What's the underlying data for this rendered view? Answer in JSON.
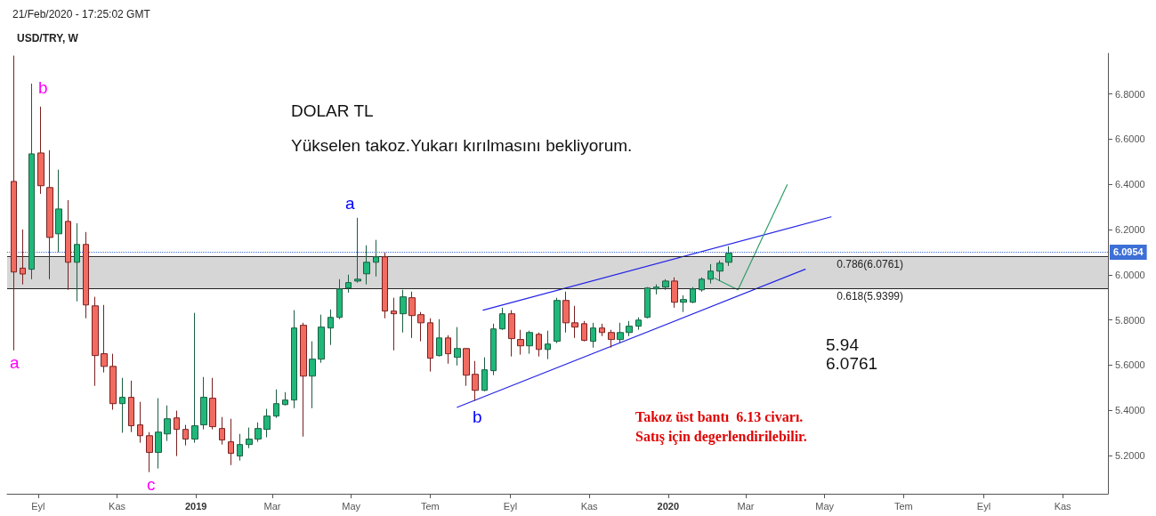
{
  "chart_data": {
    "type": "candlestick",
    "title": "USD/TRY, W",
    "annotations": [
      "21/Feb/2020 - 17:25:02 GMT",
      "DOLAR TL",
      "Yükselen takoz.Yukarı kırılmasını bekliyorum.",
      "5.94",
      "6.0761",
      "Takoz üst bantı  6.13 civarı.",
      "Satış için degerlendirilebilir.",
      "a",
      "b",
      "c",
      "a",
      "b"
    ],
    "xlim": [
      "2018-08-08",
      "2020-12-06"
    ],
    "xticks": [
      {
        "value": "2018-09-01",
        "label": "Eyl"
      },
      {
        "value": "2018-11-01",
        "label": "Kas"
      },
      {
        "value": "2019-01-01",
        "label": "2019"
      },
      {
        "value": "2019-03-01",
        "label": "Mar"
      },
      {
        "value": "2019-05-01",
        "label": "May"
      },
      {
        "value": "2019-07-01",
        "label": "Tem"
      },
      {
        "value": "2019-09-01",
        "label": "Eyl"
      },
      {
        "value": "2019-11-01",
        "label": "Kas"
      },
      {
        "value": "2020-01-01",
        "label": "2020"
      },
      {
        "value": "2020-03-01",
        "label": "Mar"
      },
      {
        "value": "2020-05-01",
        "label": "May"
      },
      {
        "value": "2020-07-01",
        "label": "Tem"
      },
      {
        "value": "2020-09-01",
        "label": "Eyl"
      },
      {
        "value": "2020-11-01",
        "label": "Kas"
      }
    ],
    "ylim": [
      5.03,
      6.98
    ],
    "yticks": [
      {
        "value": 5.2,
        "label": "5.2000"
      },
      {
        "value": 5.4,
        "label": "5.4000"
      },
      {
        "value": 5.6,
        "label": "5.6000"
      },
      {
        "value": 5.8,
        "label": "5.8000"
      },
      {
        "value": 6.0,
        "label": "6.0000"
      },
      {
        "value": 6.2,
        "label": "6.2000"
      },
      {
        "value": 6.4,
        "label": "6.4000"
      },
      {
        "value": 6.6,
        "label": "6.6000"
      },
      {
        "value": 6.8,
        "label": "6.8000"
      }
    ],
    "grid": false,
    "bands": [
      {
        "axis": "y",
        "from": 5.9399,
        "to": 6.0761,
        "color": "#c8c8c8"
      }
    ],
    "ref_lines": [
      {
        "axis": "y",
        "value": 6.0954,
        "label": "6.0954",
        "color": "#3d6fd6",
        "line_style": "dotted"
      },
      {
        "axis": "y",
        "value": 6.0761,
        "label": "0.786(6.0761)",
        "color": "#222222",
        "line_style": "solid"
      },
      {
        "axis": "y",
        "value": 5.9399,
        "label": "0.618(5.9399)",
        "color": "#222222",
        "line_style": "solid"
      }
    ],
    "series": [
      {
        "type": "candlestick",
        "x": [
          "2018-08-13",
          "2018-08-20",
          "2018-08-27",
          "2018-09-03",
          "2018-09-10",
          "2018-09-17",
          "2018-09-24",
          "2018-10-01",
          "2018-10-08",
          "2018-10-15",
          "2018-10-22",
          "2018-10-29",
          "2018-11-05",
          "2018-11-12",
          "2018-11-19",
          "2018-11-26",
          "2018-12-03",
          "2018-12-10",
          "2018-12-17",
          "2018-12-24",
          "2018-12-31",
          "2019-01-07",
          "2019-01-14",
          "2019-01-21",
          "2019-01-28",
          "2019-02-04",
          "2019-02-11",
          "2019-02-18",
          "2019-02-25",
          "2019-03-04",
          "2019-03-11",
          "2019-03-18",
          "2019-03-25",
          "2019-04-01",
          "2019-04-08",
          "2019-04-15",
          "2019-04-22",
          "2019-04-29",
          "2019-05-06",
          "2019-05-13",
          "2019-05-20",
          "2019-05-27",
          "2019-06-03",
          "2019-06-10",
          "2019-06-17",
          "2019-06-24",
          "2019-07-01",
          "2019-07-08",
          "2019-07-15",
          "2019-07-22",
          "2019-07-29",
          "2019-08-05",
          "2019-08-12",
          "2019-08-19",
          "2019-08-26",
          "2019-09-02",
          "2019-09-09",
          "2019-09-16",
          "2019-09-23",
          "2019-09-30",
          "2019-10-07",
          "2019-10-14",
          "2019-10-21",
          "2019-10-28",
          "2019-11-04",
          "2019-11-11",
          "2019-11-18",
          "2019-11-25",
          "2019-12-02",
          "2019-12-09",
          "2019-12-16",
          "2019-12-23",
          "2019-12-30",
          "2020-01-06",
          "2020-01-13",
          "2020-01-20",
          "2020-01-27",
          "2020-02-03",
          "2020-02-10",
          "2020-02-17"
        ],
        "ohlc": [
          [
            6.413,
            6.97,
            5.665,
            6.012
          ],
          [
            6.029,
            6.2,
            5.957,
            6.003
          ],
          [
            6.024,
            6.846,
            5.98,
            6.535
          ],
          [
            6.539,
            6.744,
            6.358,
            6.394
          ],
          [
            6.386,
            6.551,
            5.98,
            6.165
          ],
          [
            6.181,
            6.465,
            6.1,
            6.291
          ],
          [
            6.236,
            6.33,
            5.933,
            6.055
          ],
          [
            6.055,
            6.228,
            5.882,
            6.134
          ],
          [
            6.134,
            6.189,
            5.807,
            5.866
          ],
          [
            5.862,
            5.902,
            5.508,
            5.642
          ],
          [
            5.65,
            5.866,
            5.567,
            5.594
          ],
          [
            5.594,
            5.65,
            5.402,
            5.429
          ],
          [
            5.429,
            5.543,
            5.3,
            5.457
          ],
          [
            5.457,
            5.531,
            5.303,
            5.331
          ],
          [
            5.335,
            5.437,
            5.256,
            5.287
          ],
          [
            5.287,
            5.303,
            5.126,
            5.213
          ],
          [
            5.213,
            5.453,
            5.142,
            5.303
          ],
          [
            5.295,
            5.421,
            5.264,
            5.362
          ],
          [
            5.366,
            5.398,
            5.197,
            5.315
          ],
          [
            5.315,
            5.335,
            5.244,
            5.272
          ],
          [
            5.272,
            5.831,
            5.256,
            5.331
          ],
          [
            5.335,
            5.547,
            5.315,
            5.457
          ],
          [
            5.453,
            5.543,
            5.315,
            5.327
          ],
          [
            5.319,
            5.37,
            5.248,
            5.268
          ],
          [
            5.26,
            5.362,
            5.157,
            5.209
          ],
          [
            5.197,
            5.295,
            5.177,
            5.248
          ],
          [
            5.248,
            5.323,
            5.232,
            5.272
          ],
          [
            5.272,
            5.346,
            5.26,
            5.319
          ],
          [
            5.315,
            5.406,
            5.28,
            5.374
          ],
          [
            5.374,
            5.492,
            5.366,
            5.429
          ],
          [
            5.425,
            5.48,
            5.421,
            5.445
          ],
          [
            5.445,
            5.843,
            5.409,
            5.764
          ],
          [
            5.776,
            5.787,
            5.283,
            5.551
          ],
          [
            5.551,
            5.705,
            5.409,
            5.626
          ],
          [
            5.626,
            5.823,
            5.61,
            5.768
          ],
          [
            5.764,
            5.846,
            5.689,
            5.811
          ],
          [
            5.811,
            5.98,
            5.803,
            5.937
          ],
          [
            5.941,
            6.0,
            5.921,
            5.965
          ],
          [
            5.972,
            6.252,
            5.965,
            5.98
          ],
          [
            6.004,
            6.13,
            5.957,
            6.055
          ],
          [
            6.055,
            6.154,
            5.992,
            6.079
          ],
          [
            6.079,
            6.098,
            5.807,
            5.839
          ],
          [
            5.839,
            5.898,
            5.665,
            5.827
          ],
          [
            5.827,
            5.933,
            5.744,
            5.902
          ],
          [
            5.898,
            5.925,
            5.72,
            5.819
          ],
          [
            5.823,
            5.835,
            5.705,
            5.787
          ],
          [
            5.787,
            5.807,
            5.571,
            5.63
          ],
          [
            5.642,
            5.803,
            5.638,
            5.72
          ],
          [
            5.72,
            5.732,
            5.606,
            5.65
          ],
          [
            5.634,
            5.768,
            5.598,
            5.673
          ],
          [
            5.673,
            5.673,
            5.508,
            5.555
          ],
          [
            5.559,
            5.618,
            5.441,
            5.488
          ],
          [
            5.488,
            5.634,
            5.484,
            5.579
          ],
          [
            5.575,
            5.783,
            5.555,
            5.76
          ],
          [
            5.76,
            5.854,
            5.756,
            5.827
          ],
          [
            5.827,
            5.843,
            5.638,
            5.717
          ],
          [
            5.713,
            5.756,
            5.646,
            5.685
          ],
          [
            5.685,
            5.752,
            5.65,
            5.744
          ],
          [
            5.736,
            5.744,
            5.638,
            5.669
          ],
          [
            5.669,
            5.752,
            5.626,
            5.693
          ],
          [
            5.705,
            5.898,
            5.697,
            5.886
          ],
          [
            5.886,
            5.925,
            5.744,
            5.787
          ],
          [
            5.787,
            5.862,
            5.72,
            5.768
          ],
          [
            5.783,
            5.795,
            5.705,
            5.709
          ],
          [
            5.705,
            5.787,
            5.677,
            5.764
          ],
          [
            5.764,
            5.783,
            5.728,
            5.744
          ],
          [
            5.744,
            5.756,
            5.677,
            5.713
          ],
          [
            5.713,
            5.787,
            5.697,
            5.744
          ],
          [
            5.744,
            5.795,
            5.728,
            5.772
          ],
          [
            5.772,
            5.811,
            5.756,
            5.799
          ],
          [
            5.811,
            5.945,
            5.807,
            5.941
          ],
          [
            5.937,
            5.957,
            5.913,
            5.945
          ],
          [
            5.945,
            5.98,
            5.933,
            5.972
          ],
          [
            5.972,
            5.988,
            5.854,
            5.878
          ],
          [
            5.878,
            5.909,
            5.835,
            5.89
          ],
          [
            5.878,
            5.945,
            5.874,
            5.937
          ],
          [
            5.933,
            5.988,
            5.925,
            5.98
          ],
          [
            5.98,
            6.047,
            5.961,
            6.016
          ],
          [
            6.016,
            6.063,
            5.972,
            6.051
          ],
          [
            6.055,
            6.126,
            6.039,
            6.0954
          ]
        ]
      },
      {
        "type": "line",
        "color": "#2424e6",
        "x": [
          "2019-08-11",
          "2020-05-06"
        ],
        "values": [
          5.843,
          6.256
        ]
      },
      {
        "type": "line",
        "color": "#2424e6",
        "x": [
          "2019-07-22",
          "2020-04-16"
        ],
        "values": [
          5.413,
          6.024
        ]
      },
      {
        "type": "line",
        "color": "#2e9e6a",
        "x": [
          "2020-02-06",
          "2020-02-24",
          "2020-04-02"
        ],
        "values": [
          5.984,
          5.933,
          6.398
        ]
      }
    ]
  }
}
